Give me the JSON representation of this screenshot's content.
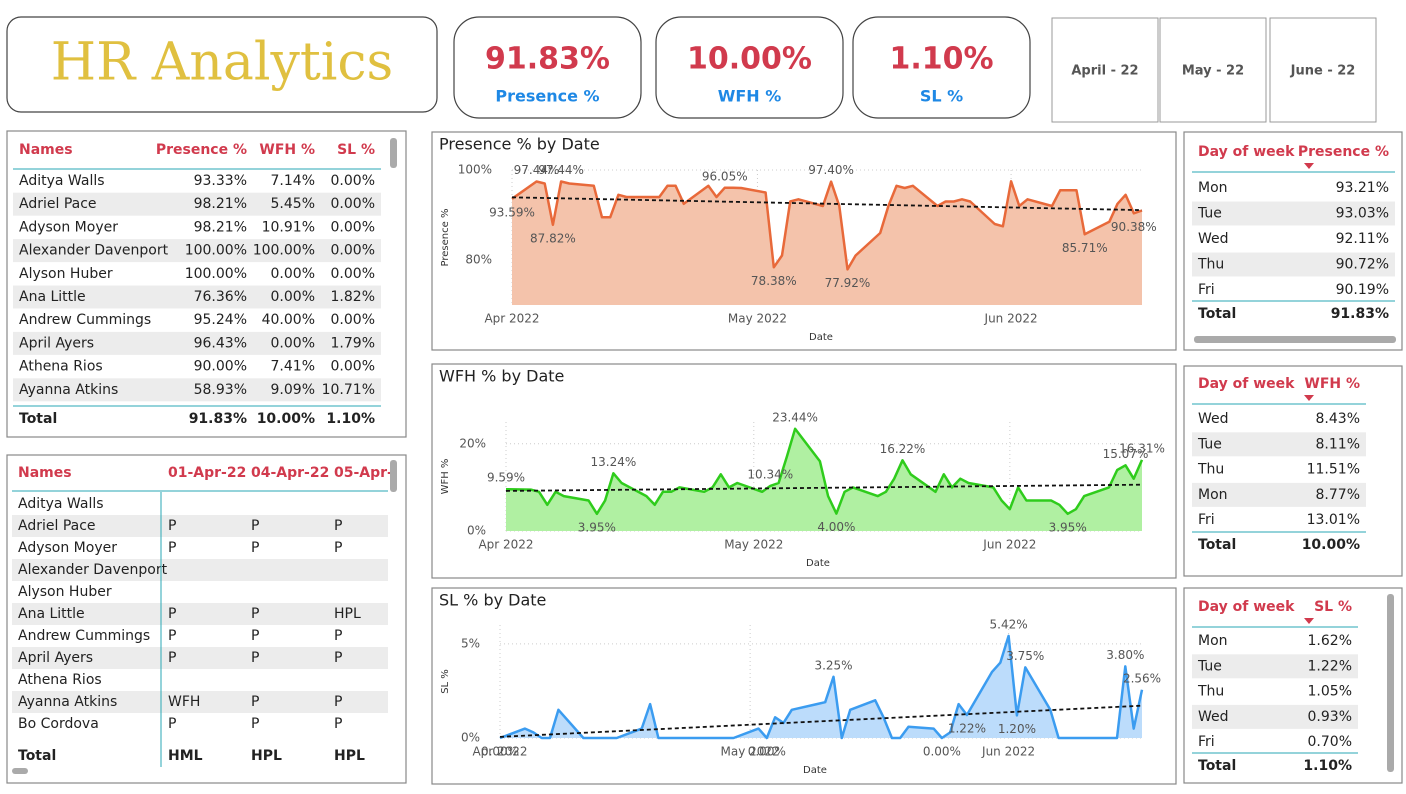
{
  "header": {
    "title": "HR Analytics"
  },
  "kpis": [
    {
      "value": "91.83%",
      "label": "Presence %"
    },
    {
      "value": "10.00%",
      "label": "WFH %"
    },
    {
      "value": "1.10%",
      "label": "SL %"
    }
  ],
  "slicers": [
    "April - 22",
    "May - 22",
    "June - 22"
  ],
  "names_table": {
    "columns": [
      "Names",
      "Presence %",
      "WFH %",
      "SL %"
    ],
    "rows": [
      [
        "Aditya Walls",
        "93.33%",
        "7.14%",
        "0.00%"
      ],
      [
        "Adriel Pace",
        "98.21%",
        "5.45%",
        "0.00%"
      ],
      [
        "Adyson Moyer",
        "98.21%",
        "10.91%",
        "0.00%"
      ],
      [
        "Alexander Davenport",
        "100.00%",
        "100.00%",
        "0.00%"
      ],
      [
        "Alyson Huber",
        "100.00%",
        "0.00%",
        "0.00%"
      ],
      [
        "Ana Little",
        "76.36%",
        "0.00%",
        "1.82%"
      ],
      [
        "Andrew Cummings",
        "95.24%",
        "40.00%",
        "0.00%"
      ],
      [
        "April Ayers",
        "96.43%",
        "0.00%",
        "1.79%"
      ],
      [
        "Athena Rios",
        "90.00%",
        "7.41%",
        "0.00%"
      ],
      [
        "Ayanna Atkins",
        "58.93%",
        "9.09%",
        "10.71%"
      ]
    ],
    "total": [
      "Total",
      "91.83%",
      "10.00%",
      "1.10%"
    ]
  },
  "attendance_table": {
    "columns": [
      "Names",
      "01-Apr-22",
      "04-Apr-22",
      "05-Apr-"
    ],
    "rows": [
      [
        "Aditya Walls",
        null,
        null,
        null
      ],
      [
        "Adriel Pace",
        "P",
        "P",
        "P"
      ],
      [
        "Adyson Moyer",
        "P",
        "P",
        "P"
      ],
      [
        "Alexander Davenport",
        null,
        null,
        null
      ],
      [
        "Alyson Huber",
        null,
        null,
        null
      ],
      [
        "Ana Little",
        "P",
        "P",
        "HPL"
      ],
      [
        "Andrew Cummings",
        "P",
        "P",
        "P"
      ],
      [
        "April Ayers",
        "P",
        "P",
        "P"
      ],
      [
        "Athena Rios",
        null,
        null,
        null
      ],
      [
        "Ayanna Atkins",
        "WFH",
        "P",
        "P"
      ],
      [
        "Bo Cordova",
        "P",
        "P",
        "P"
      ]
    ],
    "total": [
      "Total",
      "HML",
      "HPL",
      "HPL"
    ]
  },
  "day_tables": [
    {
      "columns": [
        "Day of week",
        "Presence %"
      ],
      "rows": [
        [
          "Mon",
          "93.21%"
        ],
        [
          "Tue",
          "93.03%"
        ],
        [
          "Wed",
          "92.11%"
        ],
        [
          "Thu",
          "90.72%"
        ],
        [
          "Fri",
          "90.19%"
        ]
      ],
      "total": [
        "Total",
        "91.83%"
      ]
    },
    {
      "columns": [
        "Day of week",
        "WFH %"
      ],
      "rows": [
        [
          "Wed",
          "8.43%"
        ],
        [
          "Tue",
          "8.11%"
        ],
        [
          "Thu",
          "11.51%"
        ],
        [
          "Mon",
          "8.77%"
        ],
        [
          "Fri",
          "13.01%"
        ]
      ],
      "total": [
        "Total",
        "10.00%"
      ]
    },
    {
      "columns": [
        "Day of week",
        "SL %"
      ],
      "rows": [
        [
          "Mon",
          "1.62%"
        ],
        [
          "Tue",
          "1.22%"
        ],
        [
          "Thu",
          "1.05%"
        ],
        [
          "Wed",
          "0.93%"
        ],
        [
          "Fri",
          "0.70%"
        ]
      ],
      "total": [
        "Total",
        "1.10%"
      ]
    }
  ],
  "chart_data": [
    {
      "type": "line",
      "area": true,
      "trendline": true,
      "grid": true,
      "title": "Presence % by Date",
      "xlabel": "Date",
      "ylabel": "Presence %",
      "color": "#e8693a",
      "area_color": "#f4c3ab",
      "x": [
        "2022-04-01",
        "2022-04-04",
        "2022-04-05",
        "2022-04-06",
        "2022-04-07",
        "2022-04-08",
        "2022-04-11",
        "2022-04-12",
        "2022-04-13",
        "2022-04-14",
        "2022-04-15",
        "2022-04-18",
        "2022-04-19",
        "2022-04-20",
        "2022-04-21",
        "2022-04-22",
        "2022-04-25",
        "2022-04-26",
        "2022-04-27",
        "2022-04-28",
        "2022-04-29",
        "2022-05-02",
        "2022-05-03",
        "2022-05-04",
        "2022-05-05",
        "2022-05-06",
        "2022-05-09",
        "2022-05-10",
        "2022-05-11",
        "2022-05-12",
        "2022-05-13",
        "2022-05-16",
        "2022-05-17",
        "2022-05-18",
        "2022-05-19",
        "2022-05-20",
        "2022-05-23",
        "2022-05-24",
        "2022-05-25",
        "2022-05-26",
        "2022-05-27",
        "2022-05-30",
        "2022-05-31",
        "2022-06-01",
        "2022-06-02",
        "2022-06-03",
        "2022-06-06",
        "2022-06-07",
        "2022-06-08",
        "2022-06-09",
        "2022-06-10",
        "2022-06-13",
        "2022-06-14",
        "2022-06-15",
        "2022-06-16",
        "2022-06-17"
      ],
      "values": [
        93.59,
        97.44,
        97.0,
        87.82,
        97.44,
        97.0,
        96.5,
        89.5,
        89.5,
        94.5,
        94.0,
        94.0,
        94.0,
        96.5,
        96.5,
        92.5,
        96.5,
        94.0,
        96.05,
        96.05,
        96.0,
        95.0,
        78.38,
        81.0,
        93.0,
        93.5,
        92.0,
        97.4,
        92.0,
        77.92,
        81.0,
        86.0,
        92.0,
        96.5,
        96.0,
        96.5,
        92.0,
        93.0,
        93.0,
        93.5,
        93.0,
        88.0,
        87.5,
        97.5,
        92.0,
        93.5,
        92.0,
        95.5,
        95.5,
        95.5,
        85.71,
        88.5,
        92.5,
        94.5,
        90.38,
        91.0
      ],
      "value_labels": [
        "93.59%",
        "97.44%",
        null,
        "87.82%",
        "97.44%",
        null,
        null,
        null,
        null,
        null,
        null,
        null,
        null,
        null,
        null,
        null,
        null,
        null,
        "96.05%",
        null,
        null,
        null,
        "78.38%",
        null,
        null,
        null,
        null,
        "97.40%",
        null,
        "77.92%",
        null,
        null,
        null,
        null,
        null,
        null,
        null,
        null,
        null,
        null,
        null,
        null,
        null,
        null,
        null,
        null,
        null,
        null,
        null,
        null,
        "85.71%",
        null,
        null,
        null,
        "90.38%",
        null
      ],
      "xlim": [
        "2022-04-01",
        "2022-06-17"
      ],
      "xticks": [
        {
          "value": "2022-04-01",
          "label": "Apr 2022"
        },
        {
          "value": "2022-05-01",
          "label": "May 2022"
        },
        {
          "value": "2022-06-01",
          "label": "Jun 2022"
        }
      ],
      "ylim": [
        70,
        100
      ],
      "yticks": [
        {
          "value": 80,
          "label": "80%"
        },
        {
          "value": 100,
          "label": "100%"
        }
      ]
    },
    {
      "type": "line",
      "area": true,
      "trendline": true,
      "grid": true,
      "title": "WFH % by Date",
      "xlabel": "Date",
      "ylabel": "WFH %",
      "color": "#2fcc1c",
      "area_color": "#b0f0a2",
      "x": [
        "2022-04-01",
        "2022-04-04",
        "2022-04-05",
        "2022-04-06",
        "2022-04-07",
        "2022-04-08",
        "2022-04-11",
        "2022-04-12",
        "2022-04-13",
        "2022-04-14",
        "2022-04-15",
        "2022-04-18",
        "2022-04-19",
        "2022-04-20",
        "2022-04-21",
        "2022-04-22",
        "2022-04-25",
        "2022-04-26",
        "2022-04-27",
        "2022-04-28",
        "2022-04-29",
        "2022-05-02",
        "2022-05-03",
        "2022-05-04",
        "2022-05-05",
        "2022-05-06",
        "2022-05-09",
        "2022-05-10",
        "2022-05-11",
        "2022-05-12",
        "2022-05-13",
        "2022-05-16",
        "2022-05-17",
        "2022-05-18",
        "2022-05-19",
        "2022-05-20",
        "2022-05-23",
        "2022-05-24",
        "2022-05-25",
        "2022-05-26",
        "2022-05-27",
        "2022-05-30",
        "2022-05-31",
        "2022-06-01",
        "2022-06-02",
        "2022-06-03",
        "2022-06-06",
        "2022-06-07",
        "2022-06-08",
        "2022-06-09",
        "2022-06-10",
        "2022-06-13",
        "2022-06-14",
        "2022-06-15",
        "2022-06-16",
        "2022-06-17"
      ],
      "values": [
        9.59,
        9.5,
        9.0,
        6.0,
        9.0,
        8.0,
        7.0,
        3.95,
        7.0,
        13.24,
        11.0,
        8.0,
        6.0,
        9.0,
        9.0,
        10.0,
        9.0,
        10.0,
        13.0,
        10.0,
        11.0,
        9.0,
        10.34,
        11.0,
        17.0,
        23.44,
        16.0,
        8.0,
        4.0,
        9.0,
        10.0,
        8.0,
        9.0,
        12.0,
        16.22,
        13.0,
        9.0,
        13.0,
        10.0,
        12.0,
        11.0,
        10.0,
        7.0,
        5.0,
        10.0,
        7.0,
        7.0,
        6.0,
        3.95,
        5.0,
        8.0,
        10.0,
        14.0,
        15.07,
        12.0,
        16.31
      ],
      "value_labels": [
        "9.59%",
        null,
        null,
        null,
        null,
        null,
        null,
        "3.95%",
        null,
        "13.24%",
        null,
        null,
        null,
        null,
        null,
        null,
        null,
        null,
        null,
        null,
        null,
        null,
        "10.34%",
        null,
        null,
        "23.44%",
        null,
        null,
        "4.00%",
        null,
        null,
        null,
        null,
        null,
        "16.22%",
        null,
        null,
        null,
        null,
        null,
        null,
        null,
        null,
        null,
        null,
        null,
        null,
        null,
        "3.95%",
        null,
        null,
        null,
        null,
        "15.07%",
        null,
        "16.31%"
      ],
      "xlim": [
        "2022-04-01",
        "2022-06-17"
      ],
      "xticks": [
        {
          "value": "2022-04-01",
          "label": "Apr 2022"
        },
        {
          "value": "2022-05-01",
          "label": "May 2022"
        },
        {
          "value": "2022-06-01",
          "label": "Jun 2022"
        }
      ],
      "ylim": [
        0,
        25
      ],
      "yticks": [
        {
          "value": 0,
          "label": "0%"
        },
        {
          "value": 20,
          "label": "20%"
        }
      ]
    },
    {
      "type": "line",
      "area": true,
      "trendline": true,
      "grid": true,
      "title": "SL % by Date",
      "xlabel": "Date",
      "ylabel": "SL %",
      "color": "#3b9cf0",
      "area_color": "#bcdcfb",
      "x": [
        "2022-04-01",
        "2022-04-04",
        "2022-04-05",
        "2022-04-06",
        "2022-04-07",
        "2022-04-08",
        "2022-04-11",
        "2022-04-12",
        "2022-04-13",
        "2022-04-14",
        "2022-04-15",
        "2022-04-18",
        "2022-04-19",
        "2022-04-20",
        "2022-04-21",
        "2022-04-22",
        "2022-04-25",
        "2022-04-26",
        "2022-04-27",
        "2022-04-28",
        "2022-04-29",
        "2022-05-02",
        "2022-05-03",
        "2022-05-04",
        "2022-05-05",
        "2022-05-06",
        "2022-05-09",
        "2022-05-10",
        "2022-05-11",
        "2022-05-12",
        "2022-05-13",
        "2022-05-16",
        "2022-05-17",
        "2022-05-18",
        "2022-05-19",
        "2022-05-20",
        "2022-05-23",
        "2022-05-24",
        "2022-05-25",
        "2022-05-26",
        "2022-05-27",
        "2022-05-30",
        "2022-05-31",
        "2022-06-01",
        "2022-06-02",
        "2022-06-03",
        "2022-06-06",
        "2022-06-07",
        "2022-06-08",
        "2022-06-09",
        "2022-06-10",
        "2022-06-13",
        "2022-06-14",
        "2022-06-15",
        "2022-06-16",
        "2022-06-17"
      ],
      "values": [
        0,
        0.5,
        0.3,
        0,
        0,
        1.5,
        0,
        0,
        0,
        0,
        0,
        0.5,
        1.8,
        0,
        0,
        0,
        0,
        0,
        0,
        0,
        0,
        0.5,
        0,
        1.1,
        0.8,
        1.5,
        1.8,
        1.9,
        3.25,
        0,
        1.5,
        2.0,
        1.1,
        0,
        0,
        0.6,
        0.5,
        0,
        0.3,
        1.8,
        1.22,
        3.5,
        4.0,
        5.42,
        1.2,
        3.75,
        1.5,
        0,
        0,
        0,
        0,
        0,
        0,
        3.8,
        0.5,
        2.56
      ],
      "value_labels": [
        "0.00%",
        null,
        null,
        null,
        null,
        null,
        null,
        null,
        null,
        null,
        null,
        null,
        null,
        null,
        null,
        null,
        null,
        null,
        null,
        null,
        null,
        null,
        "0.00%",
        null,
        null,
        null,
        null,
        null,
        "3.25%",
        null,
        null,
        null,
        null,
        null,
        null,
        null,
        null,
        "0.00%",
        null,
        null,
        "1.22%",
        null,
        null,
        "5.42%",
        "1.20%",
        "3.75%",
        null,
        null,
        null,
        null,
        null,
        null,
        null,
        "3.80%",
        null,
        "2.56%"
      ],
      "xlim": [
        "2022-04-01",
        "2022-06-17"
      ],
      "xticks": [
        {
          "value": "2022-04-01",
          "label": "Apr 2022"
        },
        {
          "value": "2022-05-01",
          "label": "May 2022"
        },
        {
          "value": "2022-06-01",
          "label": "Jun 2022"
        }
      ],
      "ylim": [
        0,
        6
      ],
      "yticks": [
        {
          "value": 0,
          "label": "0%"
        },
        {
          "value": 5,
          "label": "5%"
        }
      ]
    }
  ]
}
